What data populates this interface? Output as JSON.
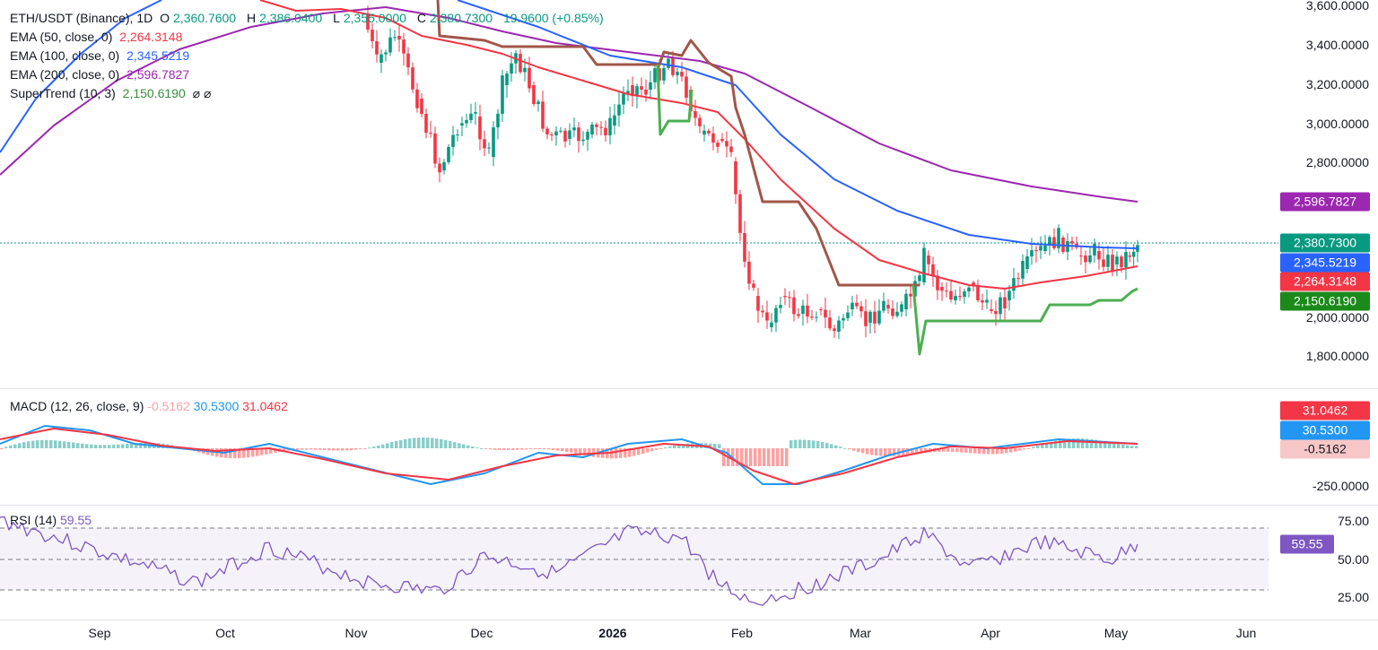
{
  "header": {
    "symbol": "ETH/USDT (Binance), 1D",
    "open_label": "O",
    "open": "2,360.7600",
    "high_label": "H",
    "high": "2,386.0400",
    "low_label": "L",
    "low": "2,355.0000",
    "close_label": "C",
    "close": "2,380.7300",
    "change": "19.9600 (+0.85%)"
  },
  "indicators": [
    {
      "label": "EMA (50, close, 0)",
      "value": "2,264.3148",
      "color": "#f23645"
    },
    {
      "label": "EMA (100, close, 0)",
      "value": "2,345.5219",
      "color": "#2962ff"
    },
    {
      "label": "EMA (200, close, 0)",
      "value": "2,596.7827",
      "color": "#9c27b0"
    },
    {
      "label": "SuperTrend (10, 3)",
      "value": "2,150.6190",
      "color": "#388e3c",
      "icons": "⌀ ⌀"
    }
  ],
  "macd": {
    "label": "MACD (12, 26, close, 9)",
    "hist": "-0.5162",
    "macd": "30.5300",
    "signal": "31.0462"
  },
  "rsi": {
    "label": "RSI (14)",
    "value": "59.55"
  },
  "price_axis": [
    "3,600.0000",
    "3,400.0000",
    "3,200.0000",
    "3,000.0000",
    "2,800.0000",
    "2,000.0000",
    "1,800.0000"
  ],
  "price_tags": [
    {
      "value": "2,596.7827",
      "color": "#9c27b0"
    },
    {
      "value": "2,380.7300",
      "color": "#089981"
    },
    {
      "value": "2,345.5219",
      "color": "#2962ff"
    },
    {
      "value": "2,264.3148",
      "color": "#f23645"
    },
    {
      "value": "2,150.6190",
      "color": "#1b8a1b"
    }
  ],
  "macd_axis": {
    "tick": "-250.0000",
    "tags": [
      {
        "value": "31.0462",
        "color": "#f23645"
      },
      {
        "value": "30.5300",
        "color": "#2196f3"
      },
      {
        "value": "-0.5162",
        "color": "#f7c7c7",
        "text": "#131722"
      }
    ]
  },
  "rsi_axis": {
    "ticks": [
      "75.00",
      "50.00",
      "25.00"
    ],
    "tag": {
      "value": "59.55",
      "color": "#7e57c2"
    }
  },
  "time_axis": [
    "Sep",
    "Oct",
    "Nov",
    "Dec",
    "2026",
    "Feb",
    "Mar",
    "Apr",
    "May",
    "Jun"
  ],
  "colors": {
    "up": "#089981",
    "down": "#f23645",
    "ema50": "#f23645",
    "ema100": "#2962ff",
    "ema200": "#9c27b0",
    "st_up": "#4caf50",
    "st_down": "#a1564a",
    "rsi": "#7e57c2"
  }
}
